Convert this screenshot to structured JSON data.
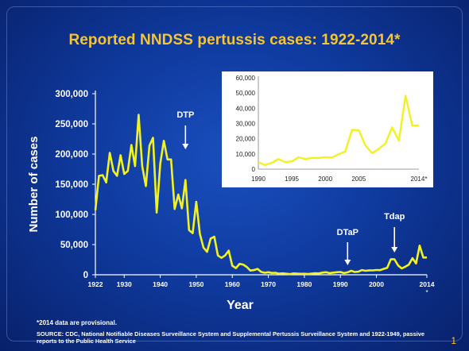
{
  "slide": {
    "title": "Reported NNDSS pertussis cases: 1922-2014*",
    "footnote": "*2014 data are provisional.",
    "source": "SOURCE: CDC, National Notifiable Diseases Surveillance System and Supplemental Pertussis Surveillance System and 1922-1949, passive reports to the Public Health Service",
    "page_number": "1"
  },
  "colors": {
    "line": "#f2f220",
    "axis": "#ffffff",
    "title": "#f5c533",
    "inset_bg": "#ffffff"
  },
  "chart_data": [
    {
      "type": "line",
      "title": "Reported NNDSS pertussis cases: 1922-2014*",
      "xlabel": "Year",
      "ylabel": "Number of cases",
      "xlim": [
        1922,
        2014
      ],
      "ylim": [
        0,
        300000
      ],
      "x_ticks": [
        1922,
        1930,
        1940,
        1950,
        1960,
        1970,
        1980,
        1990,
        2000,
        2014
      ],
      "x_tick_labels": [
        "1922",
        "1930",
        "1940",
        "1950",
        "1960",
        "1970",
        "1980",
        "1990",
        "2000",
        "2014"
      ],
      "x_note": "*",
      "y_ticks": [
        0,
        50000,
        100000,
        150000,
        200000,
        250000,
        300000
      ],
      "y_tick_labels": [
        "0",
        "50,000",
        "100,000",
        "150,000",
        "200,000",
        "250,000",
        "300,000"
      ],
      "grid": false,
      "annotations": [
        {
          "text": "DTP",
          "year": 1947
        },
        {
          "text": "DTaP",
          "year": 1992
        },
        {
          "text": "Tdap",
          "year": 2005
        }
      ],
      "series": [
        {
          "values": [
            [
              1922,
              107000
            ],
            [
              1923,
              164000
            ],
            [
              1924,
              165000
            ],
            [
              1925,
              153000
            ],
            [
              1926,
              202000
            ],
            [
              1927,
              172000
            ],
            [
              1928,
              164000
            ],
            [
              1929,
              198000
            ],
            [
              1930,
              167000
            ],
            [
              1931,
              172000
            ],
            [
              1932,
              215000
            ],
            [
              1933,
              180000
            ],
            [
              1934,
              265000
            ],
            [
              1935,
              180000
            ],
            [
              1936,
              147000
            ],
            [
              1937,
              214000
            ],
            [
              1938,
              227000
            ],
            [
              1939,
              103000
            ],
            [
              1940,
              184000
            ],
            [
              1941,
              222000
            ],
            [
              1942,
              191000
            ],
            [
              1943,
              191000
            ],
            [
              1944,
              109000
            ],
            [
              1945,
              133000
            ],
            [
              1946,
              110000
            ],
            [
              1947,
              157000
            ],
            [
              1948,
              74000
            ],
            [
              1949,
              69000
            ],
            [
              1950,
              121000
            ],
            [
              1951,
              68000
            ],
            [
              1952,
              45000
            ],
            [
              1953,
              38000
            ],
            [
              1954,
              60000
            ],
            [
              1955,
              63000
            ],
            [
              1956,
              32000
            ],
            [
              1957,
              28000
            ],
            [
              1958,
              32000
            ],
            [
              1959,
              40000
            ],
            [
              1960,
              15000
            ],
            [
              1961,
              11000
            ],
            [
              1962,
              18000
            ],
            [
              1963,
              17000
            ],
            [
              1964,
              13000
            ],
            [
              1965,
              7000
            ],
            [
              1966,
              7700
            ],
            [
              1967,
              9700
            ],
            [
              1968,
              4800
            ],
            [
              1969,
              3300
            ],
            [
              1970,
              4200
            ],
            [
              1971,
              3000
            ],
            [
              1972,
              3300
            ],
            [
              1973,
              1800
            ],
            [
              1974,
              2400
            ],
            [
              1975,
              1700
            ],
            [
              1976,
              1000
            ],
            [
              1977,
              2200
            ],
            [
              1978,
              2000
            ],
            [
              1979,
              1600
            ],
            [
              1980,
              1700
            ],
            [
              1981,
              1200
            ],
            [
              1982,
              1900
            ],
            [
              1983,
              2500
            ],
            [
              1984,
              2300
            ],
            [
              1985,
              3600
            ],
            [
              1986,
              4200
            ],
            [
              1987,
              2800
            ],
            [
              1988,
              3500
            ],
            [
              1989,
              4200
            ],
            [
              1990,
              4600
            ],
            [
              1991,
              2700
            ],
            [
              1992,
              4100
            ],
            [
              1993,
              6600
            ],
            [
              1994,
              4600
            ],
            [
              1995,
              5100
            ],
            [
              1996,
              7800
            ],
            [
              1997,
              6600
            ],
            [
              1998,
              7400
            ],
            [
              1999,
              7300
            ],
            [
              2000,
              7900
            ],
            [
              2001,
              7600
            ],
            [
              2002,
              9800
            ],
            [
              2003,
              11600
            ],
            [
              2004,
              25800
            ],
            [
              2005,
              25600
            ],
            [
              2006,
              15600
            ],
            [
              2007,
              10500
            ],
            [
              2008,
              13300
            ],
            [
              2009,
              16900
            ],
            [
              2010,
              27500
            ],
            [
              2011,
              18700
            ],
            [
              2012,
              48300
            ],
            [
              2013,
              28600
            ],
            [
              2014,
              28700
            ]
          ]
        }
      ]
    },
    {
      "type": "line",
      "xlim": [
        1990,
        2014
      ],
      "ylim": [
        0,
        60000
      ],
      "x_ticks": [
        1990,
        1995,
        2000,
        2005,
        2014
      ],
      "x_tick_labels": [
        "1990",
        "1995",
        "2000",
        "2005",
        "2014*"
      ],
      "y_ticks": [
        0,
        10000,
        20000,
        30000,
        40000,
        50000,
        60000
      ],
      "y_tick_labels": [
        "0",
        "10,000",
        "20,000",
        "30,000",
        "40,000",
        "50,000",
        "60,000"
      ],
      "grid": false,
      "series": [
        {
          "values": [
            [
              1990,
              4600
            ],
            [
              1991,
              2700
            ],
            [
              1992,
              4100
            ],
            [
              1993,
              6600
            ],
            [
              1994,
              4600
            ],
            [
              1995,
              5100
            ],
            [
              1996,
              7800
            ],
            [
              1997,
              6600
            ],
            [
              1998,
              7400
            ],
            [
              1999,
              7300
            ],
            [
              2000,
              7900
            ],
            [
              2001,
              7600
            ],
            [
              2002,
              9800
            ],
            [
              2003,
              11600
            ],
            [
              2004,
              25800
            ],
            [
              2005,
              25600
            ],
            [
              2006,
              15600
            ],
            [
              2007,
              10500
            ],
            [
              2008,
              13300
            ],
            [
              2009,
              16900
            ],
            [
              2010,
              27500
            ],
            [
              2011,
              18700
            ],
            [
              2012,
              48300
            ],
            [
              2013,
              28600
            ],
            [
              2014,
              28700
            ]
          ]
        }
      ]
    }
  ]
}
